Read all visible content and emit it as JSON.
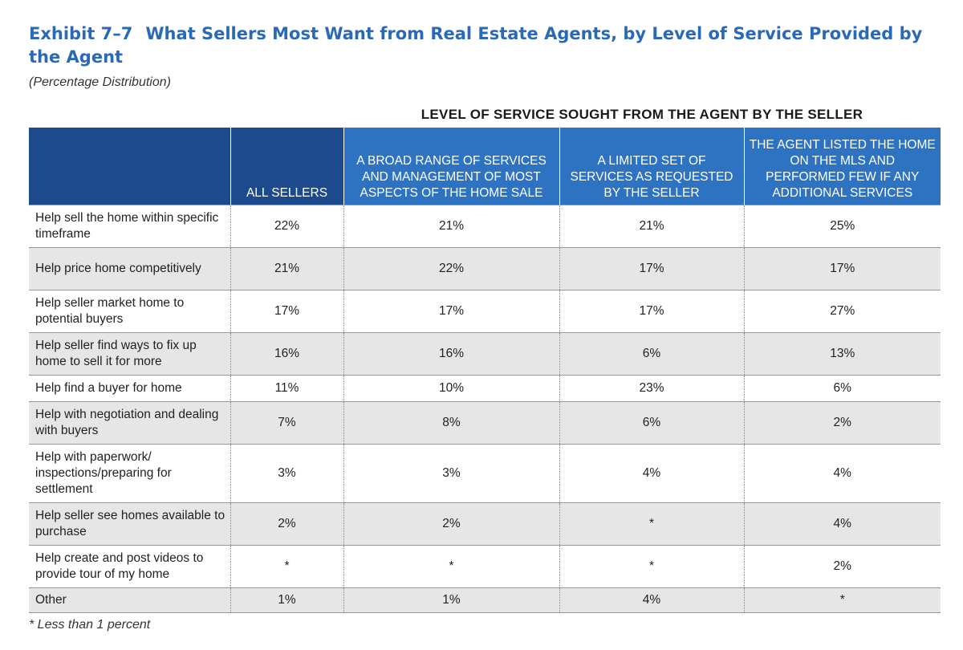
{
  "exhibit": {
    "number": "Exhibit 7–7",
    "title": "What Sellers Most Want from Real Estate Agents, by Level of Service Provided by the Agent",
    "subtitle": "(Percentage Distribution)",
    "group_header": "LEVEL OF SERVICE SOUGHT FROM THE AGENT BY THE SELLER",
    "footnote": "* Less than 1 percent"
  },
  "table": {
    "columns": [
      "",
      "ALL SELLERS",
      "A BROAD RANGE OF SERVICES AND MANAGEMENT OF MOST ASPECTS OF THE HOME SALE",
      "A LIMITED SET OF SERVICES AS REQUESTED BY THE SELLER",
      "THE AGENT LISTED THE HOME ON THE MLS AND PERFORMED FEW IF ANY ADDITIONAL SERVICES"
    ],
    "rows": [
      {
        "label": "Help sell the home within specific timeframe",
        "values": [
          "22%",
          "21%",
          "21%",
          "25%"
        ]
      },
      {
        "label": "Help price home competitively",
        "values": [
          "21%",
          "22%",
          "17%",
          "17%"
        ]
      },
      {
        "label": "Help seller market home to potential buyers",
        "values": [
          "17%",
          "17%",
          "17%",
          "27%"
        ]
      },
      {
        "label": "Help seller find ways to fix up home to sell it for more",
        "values": [
          "16%",
          "16%",
          "6%",
          "13%"
        ]
      },
      {
        "label": "Help find a buyer for home",
        "values": [
          "11%",
          "10%",
          "23%",
          "6%"
        ]
      },
      {
        "label": "Help with negotiation and dealing with buyers",
        "values": [
          "7%",
          "8%",
          "6%",
          "2%"
        ]
      },
      {
        "label": "Help with paperwork/ inspections/preparing for settlement",
        "values": [
          "3%",
          "3%",
          "4%",
          "4%"
        ]
      },
      {
        "label": "Help seller see homes available to purchase",
        "values": [
          "2%",
          "2%",
          "*",
          "4%"
        ]
      },
      {
        "label": "Help create and post videos to provide tour of my home",
        "values": [
          "*",
          "*",
          "*",
          "2%"
        ]
      },
      {
        "label": "Other",
        "values": [
          "1%",
          "1%",
          "4%",
          "*"
        ]
      }
    ]
  },
  "colors": {
    "title": "#2a6ab5",
    "header_dark": "#1c4a8c",
    "header_mid": "#2e73c2",
    "row_alt": "#e6e6e6"
  }
}
